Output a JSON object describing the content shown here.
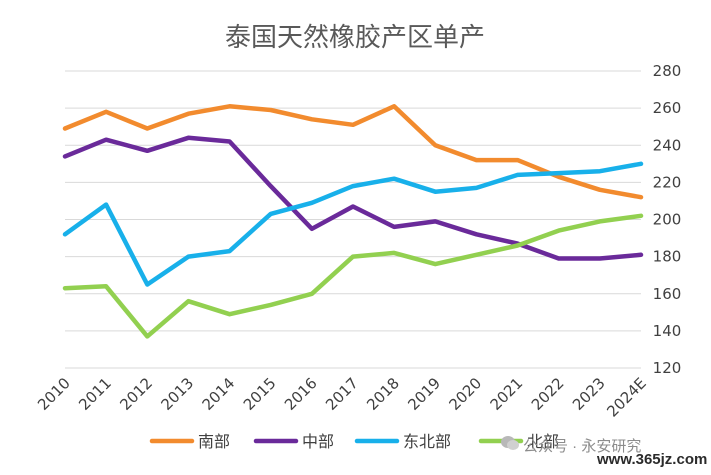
{
  "chart_data": {
    "type": "line",
    "title": "泰国天然橡胶产区单产",
    "xlabel": "",
    "ylabel": "",
    "categories": [
      "2010",
      "2011",
      "2012",
      "2013",
      "2014",
      "2015",
      "2016",
      "2017",
      "2018",
      "2019",
      "2020",
      "2021",
      "2022",
      "2023",
      "2024E"
    ],
    "ylim": [
      120,
      280
    ],
    "yticks": [
      120,
      140,
      160,
      180,
      200,
      220,
      240,
      260,
      280
    ],
    "y_axis_side": "right",
    "grid": true,
    "legend_position": "bottom",
    "series": [
      {
        "name": "南部",
        "color": "#F28B2E",
        "values": [
          249,
          258,
          249,
          257,
          261,
          259,
          254,
          251,
          261,
          240,
          232,
          232,
          223,
          216,
          212
        ]
      },
      {
        "name": "中部",
        "color": "#6A2A9A",
        "values": [
          234,
          243,
          237,
          244,
          242,
          218,
          195,
          207,
          196,
          199,
          192,
          187,
          179,
          179,
          181
        ]
      },
      {
        "name": "东北部",
        "color": "#18B0EA",
        "values": [
          192,
          208,
          165,
          180,
          183,
          203,
          209,
          218,
          222,
          215,
          217,
          224,
          225,
          226,
          230
        ]
      },
      {
        "name": "北部",
        "color": "#92D050",
        "values": [
          163,
          164,
          137,
          156,
          149,
          154,
          160,
          180,
          182,
          176,
          181,
          186,
          194,
          199,
          202
        ]
      }
    ]
  },
  "watermark": {
    "text1": "公众号 · 永安研究",
    "text2": "www.365jz.com"
  }
}
